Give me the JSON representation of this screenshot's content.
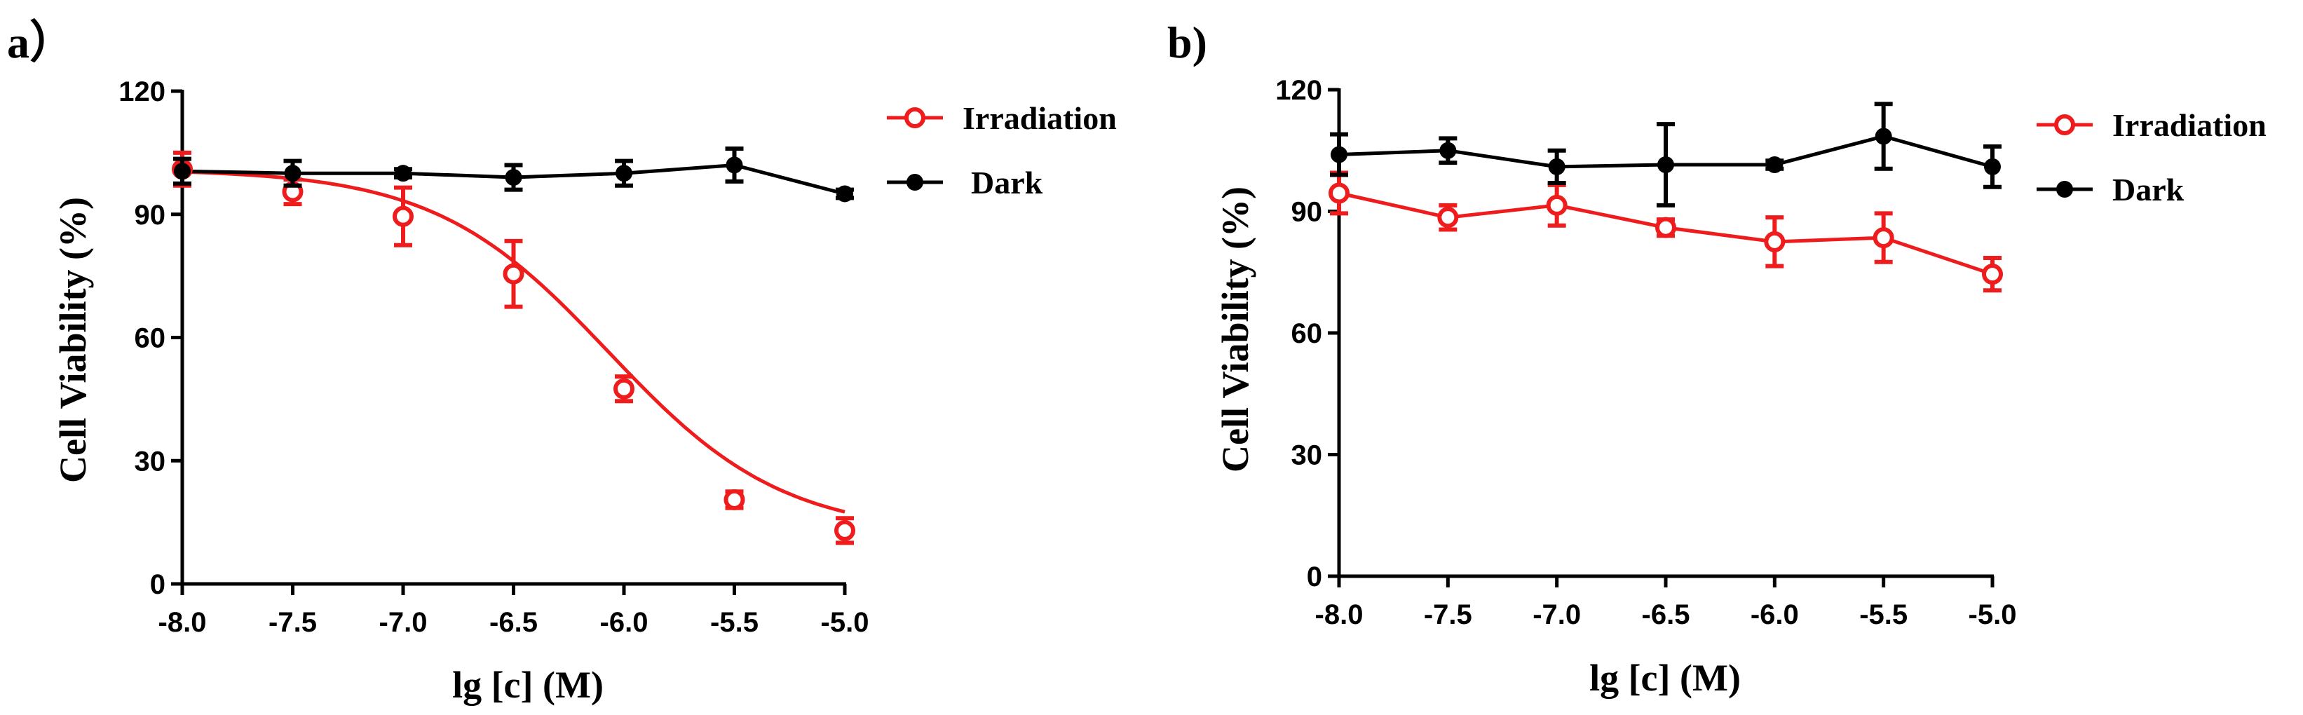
{
  "figure": {
    "colors": {
      "irradiation": "#ee1c1c",
      "dark": "#000000"
    }
  },
  "chart_data": [
    {
      "type": "line",
      "panel_label": "a）",
      "title": "",
      "xlabel": "lg [c] (M)",
      "ylabel": "Cell Viability (%)",
      "xlim": [
        -8.0,
        -5.0
      ],
      "ylim": [
        0,
        120
      ],
      "xticks": [
        -8.0,
        -7.5,
        -7.0,
        -6.5,
        -6.0,
        -5.5,
        -5.0
      ],
      "xtick_labels": [
        "-8.0",
        "-7.5",
        "-7.0",
        "-6.5",
        "-6.0",
        "-5.5",
        "-5.0"
      ],
      "yticks": [
        0,
        30,
        60,
        90,
        120
      ],
      "ytick_labels": [
        "0",
        "30",
        "60",
        "90",
        "120"
      ],
      "legend_position": "top-right",
      "series": [
        {
          "name": "Irradiation",
          "marker": "open-circle",
          "color": "#ee1c1c",
          "curve": "sigmoid-fit",
          "fit": {
            "bottom": 12,
            "top": 101,
            "log_ic50": -6.07,
            "hill_slope": -1.1
          },
          "x": [
            -8.0,
            -7.5,
            -7.0,
            -6.5,
            -6.0,
            -5.5,
            -5.0
          ],
          "values": [
            101,
            95.5,
            89.5,
            75.5,
            47.5,
            20.5,
            13
          ],
          "errors": [
            4,
            3,
            7,
            8,
            3,
            2,
            3
          ]
        },
        {
          "name": "Dark",
          "marker": "filled-circle",
          "color": "#000000",
          "curve": "straight",
          "x": [
            -8.0,
            -7.5,
            -7.0,
            -6.5,
            -6.0,
            -5.5,
            -5.0
          ],
          "values": [
            100.5,
            100,
            100,
            99,
            100,
            102,
            95
          ],
          "errors": [
            3,
            3,
            1,
            3,
            3,
            4,
            1
          ]
        }
      ]
    },
    {
      "type": "line",
      "panel_label": "b)",
      "title": "",
      "xlabel": "lg [c] (M)",
      "ylabel": "Cell Viability (%)",
      "xlim": [
        -8.0,
        -5.0
      ],
      "ylim": [
        0,
        120
      ],
      "xticks": [
        -8.0,
        -7.5,
        -7.0,
        -6.5,
        -6.0,
        -5.5,
        -5.0
      ],
      "xtick_labels": [
        "-8.0",
        "-7.5",
        "-7.0",
        "-6.5",
        "-6.0",
        "-5.5",
        "-5.0"
      ],
      "yticks": [
        0,
        30,
        60,
        90,
        120
      ],
      "ytick_labels": [
        "0",
        "30",
        "60",
        "90",
        "120"
      ],
      "legend_position": "top-right",
      "series": [
        {
          "name": "Irradiation",
          "marker": "open-circle",
          "color": "#ee1c1c",
          "curve": "straight",
          "x": [
            -8.0,
            -7.5,
            -7.0,
            -6.5,
            -6.0,
            -5.5,
            -5.0
          ],
          "values": [
            94.5,
            88.5,
            91.5,
            86,
            82.5,
            83.5,
            74.5
          ],
          "errors": [
            5,
            3,
            5,
            2,
            6,
            6,
            4
          ]
        },
        {
          "name": "Dark",
          "marker": "filled-circle",
          "color": "#000000",
          "curve": "straight",
          "x": [
            -8.0,
            -7.5,
            -7.0,
            -6.5,
            -6.0,
            -5.5,
            -5.0
          ],
          "values": [
            104,
            105,
            101,
            101.5,
            101.5,
            108.5,
            101
          ],
          "errors": [
            5,
            3,
            4,
            10,
            1,
            8,
            5
          ]
        }
      ]
    }
  ]
}
